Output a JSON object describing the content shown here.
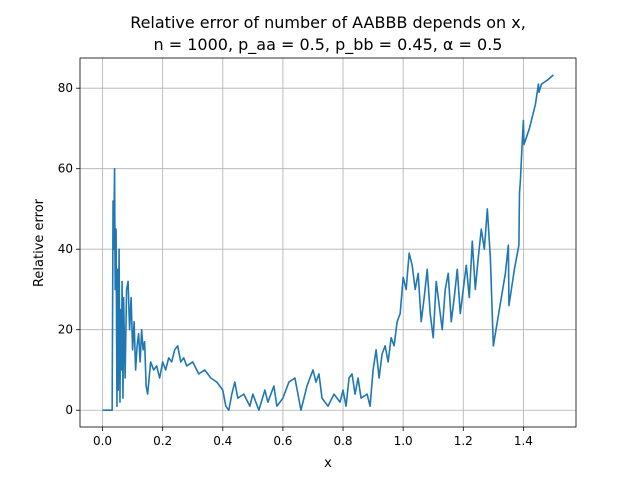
{
  "chart_data": {
    "type": "line",
    "title": [
      "Relative error of number of AABBB depends on x,",
      "n = 1000, p_aa = 0.5, p_bb = 0.45, α = 0.5"
    ],
    "x_label": "x",
    "y_label": "Relative error",
    "xlim": [
      -0.075,
      1.575
    ],
    "ylim": [
      -4.17,
      87.5
    ],
    "xticks": [
      {
        "value": 0,
        "label": "0.0"
      },
      0.2,
      0.4,
      0.6,
      0.8,
      {
        "value": 1,
        "label": "1.0"
      },
      1.2,
      1.4
    ],
    "yticks": [
      0,
      20,
      40,
      60,
      80
    ],
    "grid": true,
    "series": [
      {
        "color": "#1f77b4",
        "x": [
          0.0,
          0.03,
          0.032,
          0.035,
          0.037,
          0.04,
          0.042,
          0.045,
          0.048,
          0.05,
          0.052,
          0.055,
          0.058,
          0.06,
          0.063,
          0.065,
          0.068,
          0.07,
          0.075,
          0.08,
          0.085,
          0.09,
          0.095,
          0.1,
          0.105,
          0.11,
          0.115,
          0.12,
          0.125,
          0.13,
          0.135,
          0.14,
          0.145,
          0.15,
          0.16,
          0.17,
          0.18,
          0.19,
          0.2,
          0.21,
          0.22,
          0.23,
          0.24,
          0.25,
          0.26,
          0.27,
          0.28,
          0.3,
          0.32,
          0.34,
          0.36,
          0.38,
          0.4,
          0.41,
          0.42,
          0.43,
          0.44,
          0.45,
          0.47,
          0.49,
          0.5,
          0.52,
          0.54,
          0.55,
          0.57,
          0.58,
          0.6,
          0.62,
          0.64,
          0.65,
          0.66,
          0.67,
          0.68,
          0.7,
          0.71,
          0.72,
          0.73,
          0.75,
          0.77,
          0.79,
          0.8,
          0.81,
          0.82,
          0.83,
          0.84,
          0.85,
          0.86,
          0.88,
          0.89,
          0.9,
          0.91,
          0.92,
          0.93,
          0.94,
          0.95,
          0.96,
          0.97,
          0.98,
          0.99,
          1.0,
          1.01,
          1.02,
          1.03,
          1.04,
          1.05,
          1.06,
          1.07,
          1.08,
          1.09,
          1.1,
          1.11,
          1.12,
          1.13,
          1.14,
          1.15,
          1.16,
          1.17,
          1.18,
          1.19,
          1.2,
          1.21,
          1.22,
          1.23,
          1.24,
          1.25,
          1.26,
          1.27,
          1.28,
          1.29,
          1.3,
          1.32,
          1.34,
          1.35,
          1.352,
          1.37,
          1.385,
          1.387,
          1.39,
          1.395,
          1.4,
          1.402,
          1.42,
          1.44,
          1.45,
          1.452,
          1.46,
          1.48,
          1.5
        ],
        "values": [
          0,
          0,
          0,
          52,
          40,
          60,
          30,
          45,
          1,
          35,
          5,
          40,
          2,
          25,
          10,
          32,
          3,
          28,
          8,
          30,
          32,
          20,
          28,
          15,
          22,
          10,
          16,
          19,
          12,
          20,
          15,
          17,
          6,
          4,
          12,
          10,
          11,
          8,
          12,
          10,
          13,
          12,
          15,
          16,
          12,
          13,
          11,
          12,
          9,
          10,
          8,
          7,
          5,
          1,
          0,
          4,
          7,
          3,
          4,
          1,
          4,
          0,
          5,
          2,
          6,
          1,
          3,
          7,
          8,
          4,
          0,
          3,
          6,
          10,
          7,
          9,
          3,
          1,
          4,
          2,
          5,
          1,
          8,
          9,
          4,
          8,
          3,
          4,
          1,
          10,
          15,
          8,
          14,
          16,
          12,
          18,
          16,
          22,
          24,
          33,
          30,
          39,
          36,
          30,
          34,
          22,
          28,
          35,
          24,
          18,
          32,
          26,
          20,
          30,
          34,
          22,
          28,
          35,
          24,
          30,
          36,
          28,
          42,
          30,
          38,
          45,
          40,
          50,
          38,
          16,
          25,
          34,
          41,
          26,
          35,
          41,
          54,
          57,
          65,
          72,
          66,
          70,
          76,
          81,
          79,
          81,
          82,
          83.3
        ]
      }
    ]
  }
}
